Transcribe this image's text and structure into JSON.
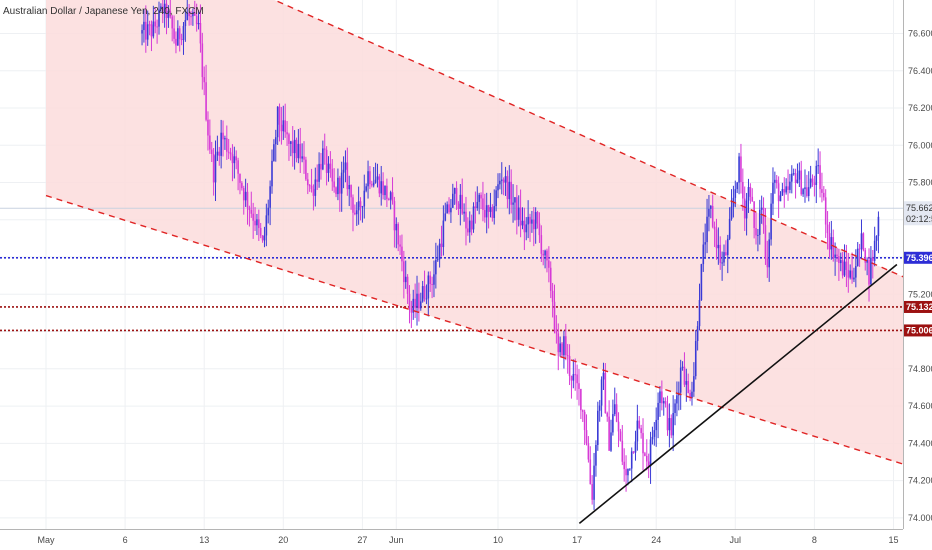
{
  "chart_data": {
    "type": "candlestick",
    "title": "Australian Dollar / Japanese Yen, 240, FXCM",
    "ylim": [
      73.94,
      76.78
    ],
    "y_ticks": [
      74.0,
      74.2,
      74.4,
      74.6,
      74.8,
      75.0,
      75.2,
      75.4,
      75.6,
      75.8,
      76.0,
      76.2,
      76.4,
      76.6
    ],
    "y_tick_labels": [
      "74.000",
      "74.200",
      "74.400",
      "74.600",
      "74.800",
      "75.000",
      "75.200",
      "75.400",
      "75.600",
      "75.800",
      "76.000",
      "76.200",
      "76.400",
      "76.600"
    ],
    "x_ticks": [
      {
        "label": "May",
        "t": 0
      },
      {
        "label": "6",
        "t": 7
      },
      {
        "label": "13",
        "t": 14
      },
      {
        "label": "20",
        "t": 21
      },
      {
        "label": "27",
        "t": 28
      },
      {
        "label": "Jun",
        "t": 31
      },
      {
        "label": "10",
        "t": 40
      },
      {
        "label": "17",
        "t": 47
      },
      {
        "label": "24",
        "t": 54
      },
      {
        "label": "Jul",
        "t": 61
      },
      {
        "label": "8",
        "t": 68
      },
      {
        "label": "15",
        "t": 75
      }
    ],
    "price_path": [
      [
        8.5,
        76.6
      ],
      [
        9.5,
        76.62
      ],
      [
        10.5,
        76.75
      ],
      [
        11.5,
        76.55
      ],
      [
        12.5,
        76.7
      ],
      [
        13.5,
        76.62
      ],
      [
        14.3,
        76.1
      ],
      [
        14.8,
        75.85
      ],
      [
        15.5,
        76.05
      ],
      [
        16.5,
        75.95
      ],
      [
        17.5,
        75.75
      ],
      [
        18.5,
        75.6
      ],
      [
        19.2,
        75.45
      ],
      [
        19.8,
        75.75
      ],
      [
        20.5,
        76.15
      ],
      [
        21.5,
        76.0
      ],
      [
        22.5,
        75.95
      ],
      [
        23.5,
        75.75
      ],
      [
        24.5,
        75.95
      ],
      [
        25.5,
        75.75
      ],
      [
        26.5,
        75.85
      ],
      [
        27.5,
        75.6
      ],
      [
        28.5,
        75.85
      ],
      [
        29.5,
        75.8
      ],
      [
        30.5,
        75.7
      ],
      [
        31.3,
        75.45
      ],
      [
        32.3,
        75.1
      ],
      [
        33.3,
        75.2
      ],
      [
        34.3,
        75.3
      ],
      [
        35.3,
        75.6
      ],
      [
        36.3,
        75.75
      ],
      [
        37.3,
        75.55
      ],
      [
        38.3,
        75.7
      ],
      [
        39.3,
        75.6
      ],
      [
        40.3,
        75.85
      ],
      [
        41.3,
        75.7
      ],
      [
        42.3,
        75.55
      ],
      [
        43.3,
        75.6
      ],
      [
        44.3,
        75.35
      ],
      [
        44.8,
        75.2
      ],
      [
        45.3,
        74.85
      ],
      [
        45.8,
        74.95
      ],
      [
        46.3,
        74.8
      ],
      [
        47.3,
        74.65
      ],
      [
        47.8,
        74.45
      ],
      [
        48.3,
        74.1
      ],
      [
        48.8,
        74.55
      ],
      [
        49.3,
        74.75
      ],
      [
        49.8,
        74.4
      ],
      [
        50.3,
        74.6
      ],
      [
        51.3,
        74.2
      ],
      [
        52.3,
        74.5
      ],
      [
        53.3,
        74.3
      ],
      [
        54.3,
        74.7
      ],
      [
        55.3,
        74.45
      ],
      [
        56.3,
        74.85
      ],
      [
        56.8,
        74.65
      ],
      [
        57.3,
        74.75
      ],
      [
        57.8,
        75.2
      ],
      [
        58.3,
        75.5
      ],
      [
        58.8,
        75.65
      ],
      [
        59.3,
        75.5
      ],
      [
        59.8,
        75.35
      ],
      [
        60.3,
        75.45
      ],
      [
        60.8,
        75.7
      ],
      [
        61.3,
        75.9
      ],
      [
        61.8,
        75.65
      ],
      [
        62.3,
        75.8
      ],
      [
        62.8,
        75.45
      ],
      [
        63.3,
        75.7
      ],
      [
        63.8,
        75.35
      ],
      [
        64.3,
        75.8
      ],
      [
        65.3,
        75.7
      ],
      [
        66.3,
        75.85
      ],
      [
        67.3,
        75.75
      ],
      [
        68.3,
        75.85
      ],
      [
        68.8,
        75.7
      ],
      [
        69.3,
        75.5
      ],
      [
        70.3,
        75.35
      ],
      [
        71.3,
        75.3
      ],
      [
        72.3,
        75.5
      ],
      [
        72.8,
        75.3
      ],
      [
        73.3,
        75.45
      ],
      [
        73.8,
        75.66
      ]
    ],
    "channel_upper": [
      [
        0,
        77.32
      ],
      [
        80.5,
        75.17
      ]
    ],
    "channel_lower": [
      [
        0,
        75.73
      ],
      [
        80.5,
        74.2
      ]
    ],
    "trendline": [
      [
        47.2,
        73.97
      ],
      [
        75.3,
        75.36
      ]
    ],
    "levels": [
      {
        "price": 75.396,
        "label": "75.396",
        "color": "#2d2dd6"
      },
      {
        "price": 75.132,
        "label": "75.132",
        "color": "#9c1111"
      },
      {
        "price": 75.006,
        "label": "75.006",
        "color": "#9c1111"
      }
    ],
    "last_price": {
      "price": 75.662,
      "label": "75.662",
      "countdown": "02:12:53"
    },
    "colors": {
      "bull": "#3a3ad6",
      "bear": "#d63ad6",
      "channel_fill": "#fcdcdc",
      "channel_line": "#e02424",
      "trend": "#111111"
    }
  }
}
